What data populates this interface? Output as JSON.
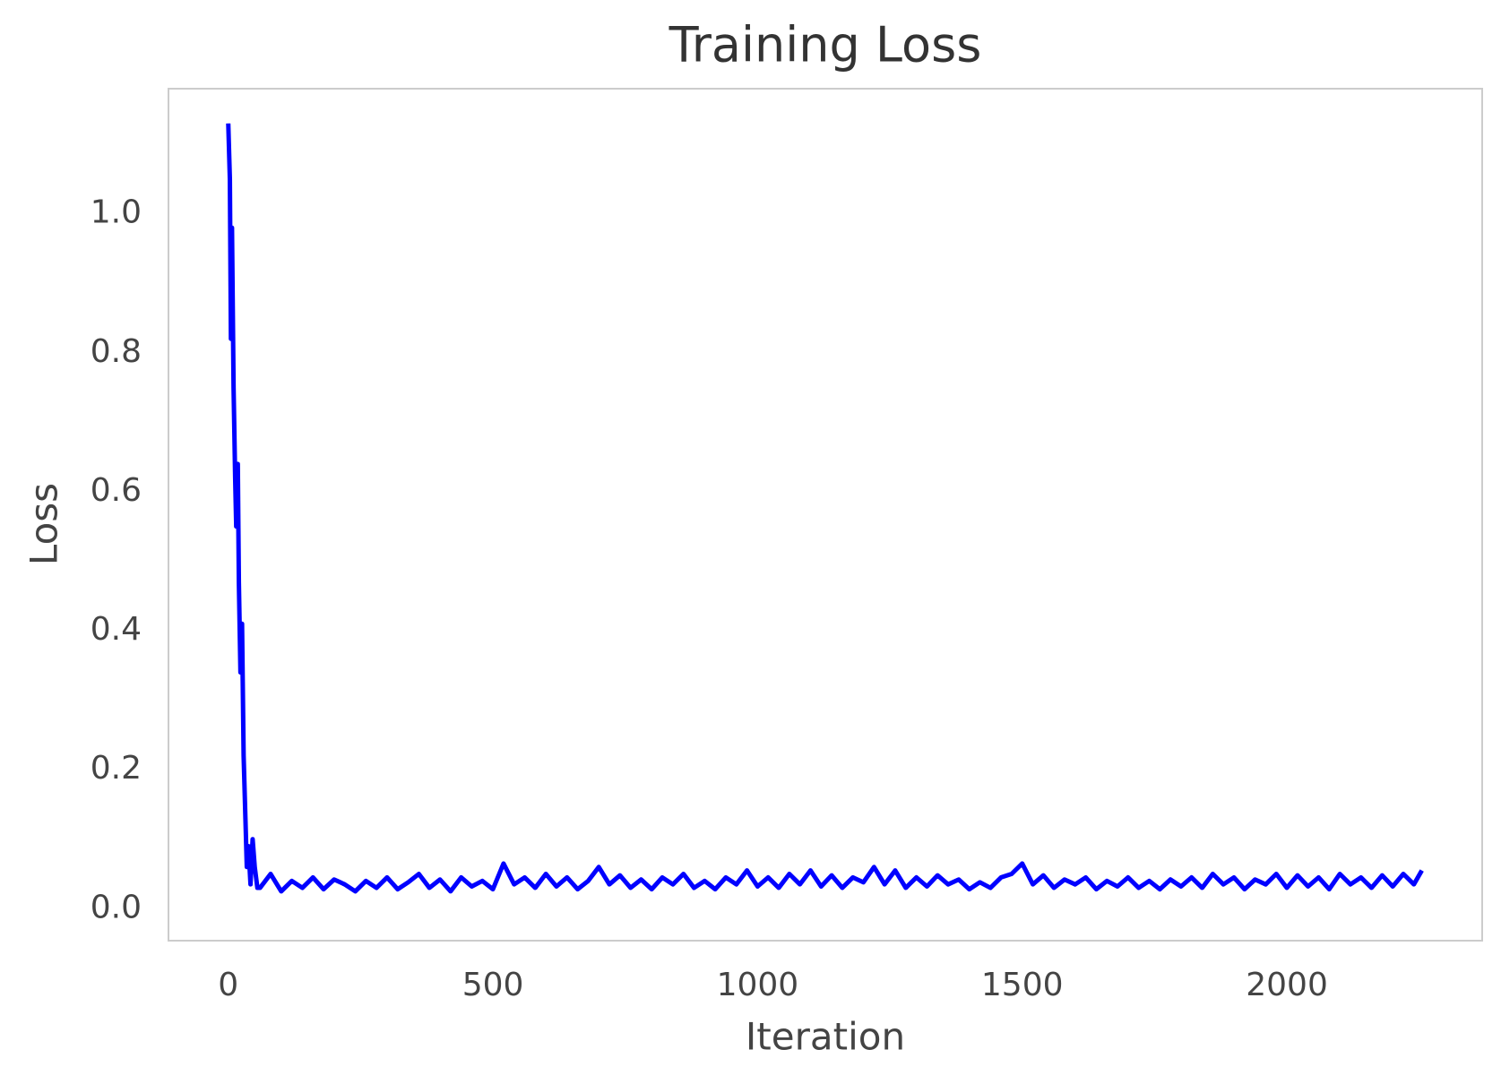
{
  "chart_data": {
    "type": "line",
    "title": "Training Loss",
    "x_label": "Iteration",
    "y_label": "Loss",
    "color": "#0000ff",
    "x": [
      0,
      3,
      5,
      7,
      10,
      13,
      15,
      18,
      20,
      23,
      26,
      29,
      32,
      35,
      38,
      42,
      46,
      50,
      55,
      60,
      80,
      100,
      120,
      140,
      160,
      180,
      200,
      220,
      240,
      260,
      280,
      300,
      320,
      340,
      360,
      380,
      400,
      420,
      440,
      460,
      480,
      500,
      520,
      540,
      560,
      580,
      600,
      620,
      640,
      660,
      680,
      700,
      720,
      740,
      760,
      780,
      800,
      820,
      840,
      860,
      880,
      900,
      920,
      940,
      960,
      980,
      1000,
      1020,
      1040,
      1060,
      1080,
      1100,
      1120,
      1140,
      1160,
      1180,
      1200,
      1220,
      1240,
      1260,
      1280,
      1300,
      1320,
      1340,
      1360,
      1380,
      1400,
      1420,
      1440,
      1460,
      1480,
      1500,
      1520,
      1540,
      1560,
      1580,
      1600,
      1620,
      1640,
      1660,
      1680,
      1700,
      1720,
      1740,
      1760,
      1780,
      1800,
      1820,
      1840,
      1860,
      1880,
      1900,
      1920,
      1940,
      1960,
      1980,
      2000,
      2020,
      2040,
      2060,
      2080,
      2100,
      2120,
      2140,
      2160,
      2180,
      2200,
      2220,
      2240,
      2255
    ],
    "values": [
      1.13,
      1.05,
      0.82,
      0.98,
      0.75,
      0.62,
      0.55,
      0.64,
      0.47,
      0.34,
      0.41,
      0.22,
      0.14,
      0.06,
      0.09,
      0.035,
      0.1,
      0.06,
      0.03,
      0.03,
      0.05,
      0.025,
      0.04,
      0.03,
      0.045,
      0.028,
      0.042,
      0.035,
      0.025,
      0.04,
      0.03,
      0.045,
      0.028,
      0.038,
      0.05,
      0.03,
      0.042,
      0.025,
      0.045,
      0.032,
      0.04,
      0.028,
      0.065,
      0.035,
      0.045,
      0.03,
      0.05,
      0.032,
      0.045,
      0.028,
      0.04,
      0.06,
      0.035,
      0.048,
      0.03,
      0.042,
      0.028,
      0.045,
      0.035,
      0.05,
      0.03,
      0.04,
      0.028,
      0.045,
      0.035,
      0.055,
      0.032,
      0.045,
      0.03,
      0.05,
      0.035,
      0.055,
      0.032,
      0.048,
      0.03,
      0.045,
      0.038,
      0.06,
      0.035,
      0.055,
      0.03,
      0.045,
      0.032,
      0.048,
      0.035,
      0.042,
      0.028,
      0.038,
      0.03,
      0.045,
      0.05,
      0.065,
      0.035,
      0.048,
      0.03,
      0.042,
      0.035,
      0.045,
      0.028,
      0.04,
      0.032,
      0.045,
      0.03,
      0.04,
      0.028,
      0.042,
      0.032,
      0.045,
      0.03,
      0.05,
      0.035,
      0.045,
      0.028,
      0.042,
      0.035,
      0.05,
      0.03,
      0.048,
      0.032,
      0.045,
      0.028,
      0.05,
      0.035,
      0.045,
      0.03,
      0.048,
      0.032,
      0.05,
      0.035,
      0.055
    ],
    "xlim": [
      -113,
      2369
    ],
    "ylim": [
      -0.046,
      1.18
    ],
    "xticks": [
      0,
      500,
      1000,
      1500,
      2000
    ],
    "yticks": [
      {
        "value": 0,
        "label": "0.0"
      },
      0.2,
      0.4,
      0.6,
      0.8,
      {
        "value": 1,
        "label": "1.0"
      }
    ],
    "grid": false
  }
}
